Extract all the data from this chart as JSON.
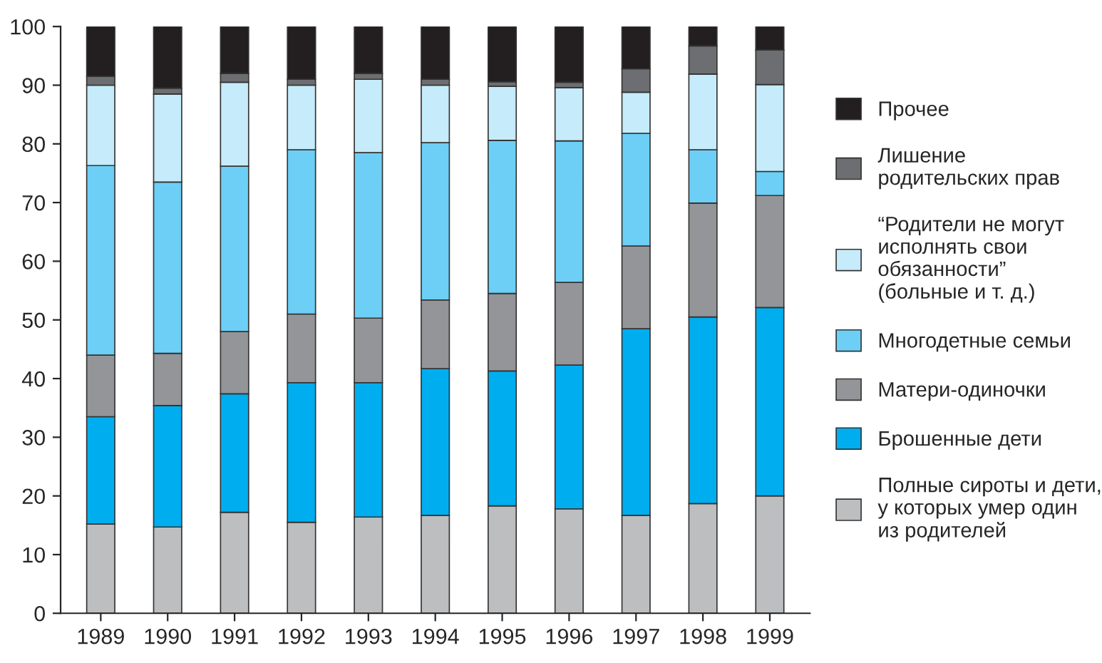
{
  "chart_data": {
    "type": "bar",
    "stacked": true,
    "categories": [
      "1989",
      "1990",
      "1991",
      "1992",
      "1993",
      "1994",
      "1995",
      "1996",
      "1997",
      "1998",
      "1999"
    ],
    "series": [
      {
        "name": "Полные сироты и дети,\nу которых умер один\nиз родителей",
        "color": "#bcbec0",
        "values": [
          15.2,
          14.7,
          17.2,
          15.5,
          16.4,
          16.7,
          18.3,
          17.8,
          16.7,
          18.7,
          20.0
        ]
      },
      {
        "name": "Брошенные дети",
        "color": "#00aeef",
        "values": [
          18.3,
          20.7,
          20.2,
          23.8,
          22.9,
          25.0,
          23.0,
          24.5,
          31.8,
          31.8,
          32.1
        ]
      },
      {
        "name": "Матери-одиночки",
        "color": "#939598",
        "values": [
          10.5,
          8.9,
          10.6,
          11.7,
          11.0,
          11.7,
          13.2,
          14.1,
          14.1,
          19.4,
          19.1
        ]
      },
      {
        "name": "Многодетные семьи",
        "color": "#6dcff6",
        "values": [
          32.3,
          29.2,
          28.2,
          28.0,
          28.2,
          26.8,
          26.1,
          24.1,
          19.2,
          9.1,
          4.1
        ]
      },
      {
        "name": "“Родители не могут\nисполнять свои\nобязанности”\n(больные и т. д.)",
        "color": "#c6ebfb",
        "values": [
          13.7,
          15.0,
          14.3,
          11.0,
          12.5,
          9.8,
          9.2,
          9.1,
          7.0,
          12.9,
          14.8
        ]
      },
      {
        "name": "Лишение\nродительских прав",
        "color": "#6d6e71",
        "values": [
          1.5,
          1.0,
          1.5,
          1.0,
          1.0,
          1.0,
          0.8,
          0.9,
          4.0,
          4.8,
          5.9
        ]
      },
      {
        "name": "Прочее",
        "color": "#231f20",
        "values": [
          8.5,
          10.5,
          8.0,
          9.0,
          8.0,
          9.0,
          9.4,
          9.5,
          7.2,
          3.3,
          4.0
        ]
      }
    ],
    "ylim": [
      0,
      100
    ],
    "yticks": [
      0,
      10,
      20,
      30,
      40,
      50,
      60,
      70,
      80,
      90,
      100
    ],
    "grid": false,
    "legend": "right"
  }
}
